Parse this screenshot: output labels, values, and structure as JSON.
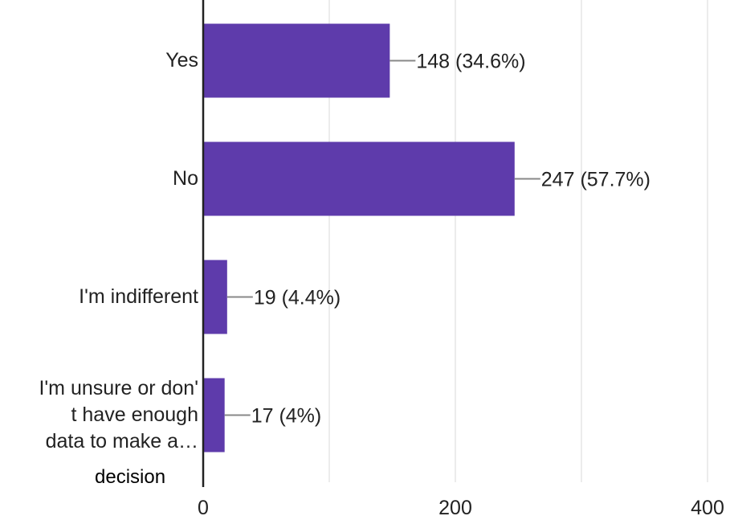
{
  "chart_data": {
    "type": "bar",
    "orientation": "horizontal",
    "categories": [
      [
        "Yes"
      ],
      [
        "No"
      ],
      [
        "I'm indifferent"
      ],
      [
        "I'm unsure or don'",
        "t have enough",
        "data to make a…"
      ]
    ],
    "category_extra_line": "decision",
    "values": [
      148,
      247,
      19,
      17
    ],
    "data_labels": [
      "148 (34.6%)",
      "247 (57.7%)",
      "19 (4.4%)",
      "17 (4%)"
    ],
    "x_ticks": [
      "0",
      "200",
      "400"
    ],
    "xlim": [
      0,
      400
    ],
    "grid": true,
    "colors": {
      "bar": "#5e3bab",
      "grid": "#e6e6e6",
      "axis": "#222222",
      "leader": "#888888",
      "text": "#222222"
    }
  }
}
